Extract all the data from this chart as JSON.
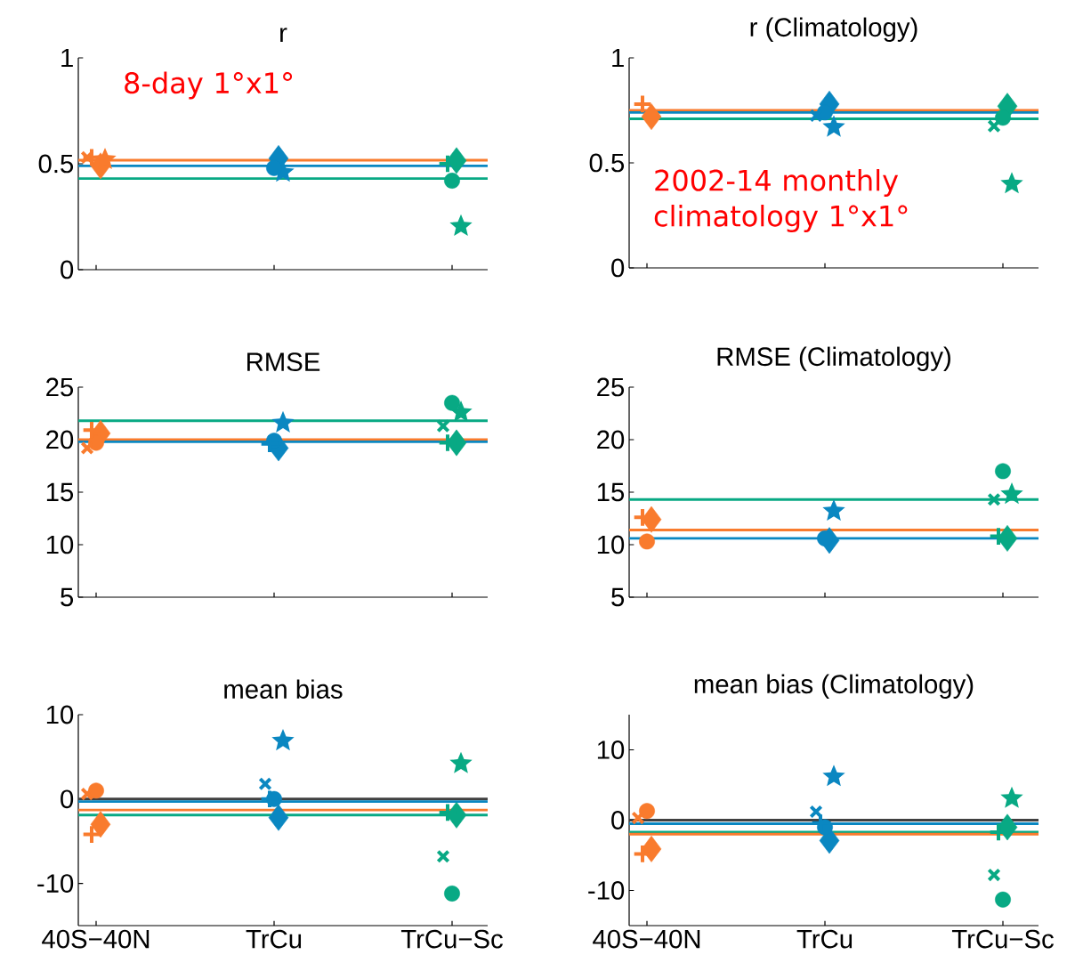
{
  "chart_data": [
    {
      "type": "scatter",
      "title": "r",
      "categories": [
        null,
        null,
        null
      ],
      "ylim": [
        0,
        1
      ],
      "yticks": [
        0,
        0.5,
        1
      ],
      "tick_labels": "y",
      "annotations": [
        "8-day 1°x1°"
      ],
      "ref_lines": [
        {
          "axis": "y",
          "value": 0.517,
          "color": "#f97b2d"
        },
        {
          "axis": "y",
          "value": 0.49,
          "color": "#0a87c1"
        },
        {
          "axis": "y",
          "value": 0.43,
          "color": "#08a984"
        }
      ],
      "series": [
        {
          "marker": "cross",
          "values": [
            0.53,
            null,
            null
          ],
          "colors": [
            "#f97b2d",
            "#0a87c1",
            "#08a984"
          ]
        },
        {
          "marker": "plus",
          "values": [
            0.53,
            null,
            0.5
          ],
          "colors": [
            "#f97b2d",
            "#0a87c1",
            "#08a984"
          ]
        },
        {
          "marker": "circle",
          "values": [
            null,
            0.48,
            0.42
          ],
          "colors": [
            "#f97b2d",
            "#0a87c1",
            "#08a984"
          ]
        },
        {
          "marker": "diamond",
          "values": [
            0.49,
            0.525,
            0.515
          ],
          "colors": [
            "#f97b2d",
            "#0a87c1",
            "#08a984"
          ]
        },
        {
          "marker": "star",
          "values": [
            0.52,
            0.46,
            0.205
          ],
          "colors": [
            "#f97b2d",
            "#0a87c1",
            "#08a984"
          ]
        }
      ]
    },
    {
      "type": "scatter",
      "title": "r (Climatology)",
      "categories": [
        null,
        null,
        null
      ],
      "ylim": [
        0,
        1
      ],
      "yticks": [
        0,
        0.5,
        1
      ],
      "tick_labels": "y",
      "annotations": [
        "2002-14 monthly climatology 1°x1°"
      ],
      "ref_lines": [
        {
          "axis": "y",
          "value": 0.75,
          "color": "#f97b2d"
        },
        {
          "axis": "y",
          "value": 0.74,
          "color": "#0a87c1"
        },
        {
          "axis": "y",
          "value": 0.71,
          "color": "#08a984"
        }
      ],
      "series": [
        {
          "marker": "cross",
          "values": [
            null,
            0.725,
            0.675
          ],
          "colors": [
            "#f97b2d",
            "#0a87c1",
            "#08a984"
          ]
        },
        {
          "marker": "plus",
          "values": [
            0.78,
            null,
            null
          ],
          "colors": [
            "#f97b2d",
            "#0a87c1",
            "#08a984"
          ]
        },
        {
          "marker": "circle",
          "values": [
            null,
            0.74,
            0.715
          ],
          "colors": [
            "#f97b2d",
            "#0a87c1",
            "#08a984"
          ]
        },
        {
          "marker": "diamond",
          "values": [
            0.72,
            0.78,
            0.77
          ],
          "colors": [
            "#f97b2d",
            "#0a87c1",
            "#08a984"
          ]
        },
        {
          "marker": "star",
          "values": [
            null,
            0.67,
            0.4
          ],
          "colors": [
            "#f97b2d",
            "#0a87c1",
            "#08a984"
          ]
        }
      ]
    },
    {
      "type": "scatter",
      "title": "RMSE",
      "categories": [
        null,
        null,
        null
      ],
      "ylim": [
        5,
        25
      ],
      "yticks": [
        5,
        10,
        15,
        20,
        25
      ],
      "tick_labels": "y",
      "ref_lines": [
        {
          "axis": "y",
          "value": 21.8,
          "color": "#08a984"
        },
        {
          "axis": "y",
          "value": 20.0,
          "color": "#f97b2d"
        },
        {
          "axis": "y",
          "value": 19.8,
          "color": "#0a87c1"
        }
      ],
      "series": [
        {
          "marker": "cross",
          "values": [
            19.2,
            null,
            21.3
          ],
          "colors": [
            "#f97b2d",
            "#0a87c1",
            "#08a984"
          ]
        },
        {
          "marker": "plus",
          "values": [
            20.9,
            19.6,
            19.7
          ],
          "colors": [
            "#f97b2d",
            "#0a87c1",
            "#08a984"
          ]
        },
        {
          "marker": "circle",
          "values": [
            19.7,
            19.9,
            23.5
          ],
          "colors": [
            "#f97b2d",
            "#0a87c1",
            "#08a984"
          ]
        },
        {
          "marker": "diamond",
          "values": [
            20.6,
            19.2,
            19.7
          ],
          "colors": [
            "#f97b2d",
            "#0a87c1",
            "#08a984"
          ]
        },
        {
          "marker": "star",
          "values": [
            null,
            21.6,
            22.6
          ],
          "colors": [
            "#f97b2d",
            "#0a87c1",
            "#08a984"
          ]
        }
      ]
    },
    {
      "type": "scatter",
      "title": "RMSE (Climatology)",
      "categories": [
        null,
        null,
        null
      ],
      "ylim": [
        5,
        25
      ],
      "yticks": [
        5,
        10,
        15,
        20,
        25
      ],
      "tick_labels": "y",
      "ref_lines": [
        {
          "axis": "y",
          "value": 14.3,
          "color": "#08a984"
        },
        {
          "axis": "y",
          "value": 11.4,
          "color": "#f97b2d"
        },
        {
          "axis": "y",
          "value": 10.6,
          "color": "#0a87c1"
        }
      ],
      "series": [
        {
          "marker": "cross",
          "values": [
            null,
            null,
            14.3
          ],
          "colors": [
            "#f97b2d",
            "#0a87c1",
            "#08a984"
          ]
        },
        {
          "marker": "plus",
          "values": [
            12.6,
            null,
            10.8
          ],
          "colors": [
            "#f97b2d",
            "#0a87c1",
            "#08a984"
          ]
        },
        {
          "marker": "circle",
          "values": [
            10.3,
            10.6,
            17.0
          ],
          "colors": [
            "#f97b2d",
            "#0a87c1",
            "#08a984"
          ]
        },
        {
          "marker": "diamond",
          "values": [
            12.4,
            10.4,
            10.6
          ],
          "colors": [
            "#f97b2d",
            "#0a87c1",
            "#08a984"
          ]
        },
        {
          "marker": "star",
          "values": [
            null,
            13.2,
            14.8
          ],
          "colors": [
            "#f97b2d",
            "#0a87c1",
            "#08a984"
          ]
        }
      ]
    },
    {
      "type": "scatter",
      "title": "mean bias",
      "categories": [
        "40S−40N",
        "TrCu",
        "TrCu−Sc"
      ],
      "ylim": [
        -15,
        10
      ],
      "yticks": [
        -10,
        0,
        10
      ],
      "ref_lines": [
        {
          "axis": "y",
          "value": 0,
          "color": "#404040"
        },
        {
          "axis": "y",
          "value": -0.3,
          "color": "#0a87c1"
        },
        {
          "axis": "y",
          "value": -1.3,
          "color": "#f97b2d"
        },
        {
          "axis": "y",
          "value": -1.9,
          "color": "#08a984"
        }
      ],
      "series": [
        {
          "marker": "cross",
          "values": [
            0.6,
            1.8,
            -6.8
          ],
          "colors": [
            "#f97b2d",
            "#0a87c1",
            "#08a984"
          ]
        },
        {
          "marker": "plus",
          "values": [
            -4.2,
            0.0,
            -1.6
          ],
          "colors": [
            "#f97b2d",
            "#0a87c1",
            "#08a984"
          ]
        },
        {
          "marker": "circle",
          "values": [
            1.0,
            0.0,
            -11.2
          ],
          "colors": [
            "#f97b2d",
            "#0a87c1",
            "#08a984"
          ]
        },
        {
          "marker": "diamond",
          "values": [
            -3.0,
            -2.2,
            -1.9
          ],
          "colors": [
            "#f97b2d",
            "#0a87c1",
            "#08a984"
          ]
        },
        {
          "marker": "star",
          "values": [
            null,
            6.9,
            4.2
          ],
          "colors": [
            "#f97b2d",
            "#0a87c1",
            "#08a984"
          ]
        }
      ]
    },
    {
      "type": "scatter",
      "title": "mean bias (Climatology)",
      "categories": [
        "40S−40N",
        "TrCu",
        "TrCu−Sc"
      ],
      "ylim": [
        -15,
        15
      ],
      "yticks": [
        -10,
        0,
        10
      ],
      "ref_lines": [
        {
          "axis": "y",
          "value": 0,
          "color": "#404040"
        },
        {
          "axis": "y",
          "value": -0.5,
          "color": "#0a87c1"
        },
        {
          "axis": "y",
          "value": -1.7,
          "color": "#08a984"
        },
        {
          "axis": "y",
          "value": -2.0,
          "color": "#f97b2d"
        }
      ],
      "series": [
        {
          "marker": "cross",
          "values": [
            0.3,
            1.2,
            -7.8
          ],
          "colors": [
            "#f97b2d",
            "#0a87c1",
            "#08a984"
          ]
        },
        {
          "marker": "plus",
          "values": [
            -4.8,
            -0.4,
            -1.7
          ],
          "colors": [
            "#f97b2d",
            "#0a87c1",
            "#08a984"
          ]
        },
        {
          "marker": "circle",
          "values": [
            1.3,
            -1.0,
            -11.3
          ],
          "colors": [
            "#f97b2d",
            "#0a87c1",
            "#08a984"
          ]
        },
        {
          "marker": "diamond",
          "values": [
            -4.1,
            -2.9,
            -1.0
          ],
          "colors": [
            "#f97b2d",
            "#0a87c1",
            "#08a984"
          ]
        },
        {
          "marker": "star",
          "values": [
            null,
            6.2,
            3.1
          ],
          "colors": [
            "#f97b2d",
            "#0a87c1",
            "#08a984"
          ]
        }
      ]
    }
  ]
}
